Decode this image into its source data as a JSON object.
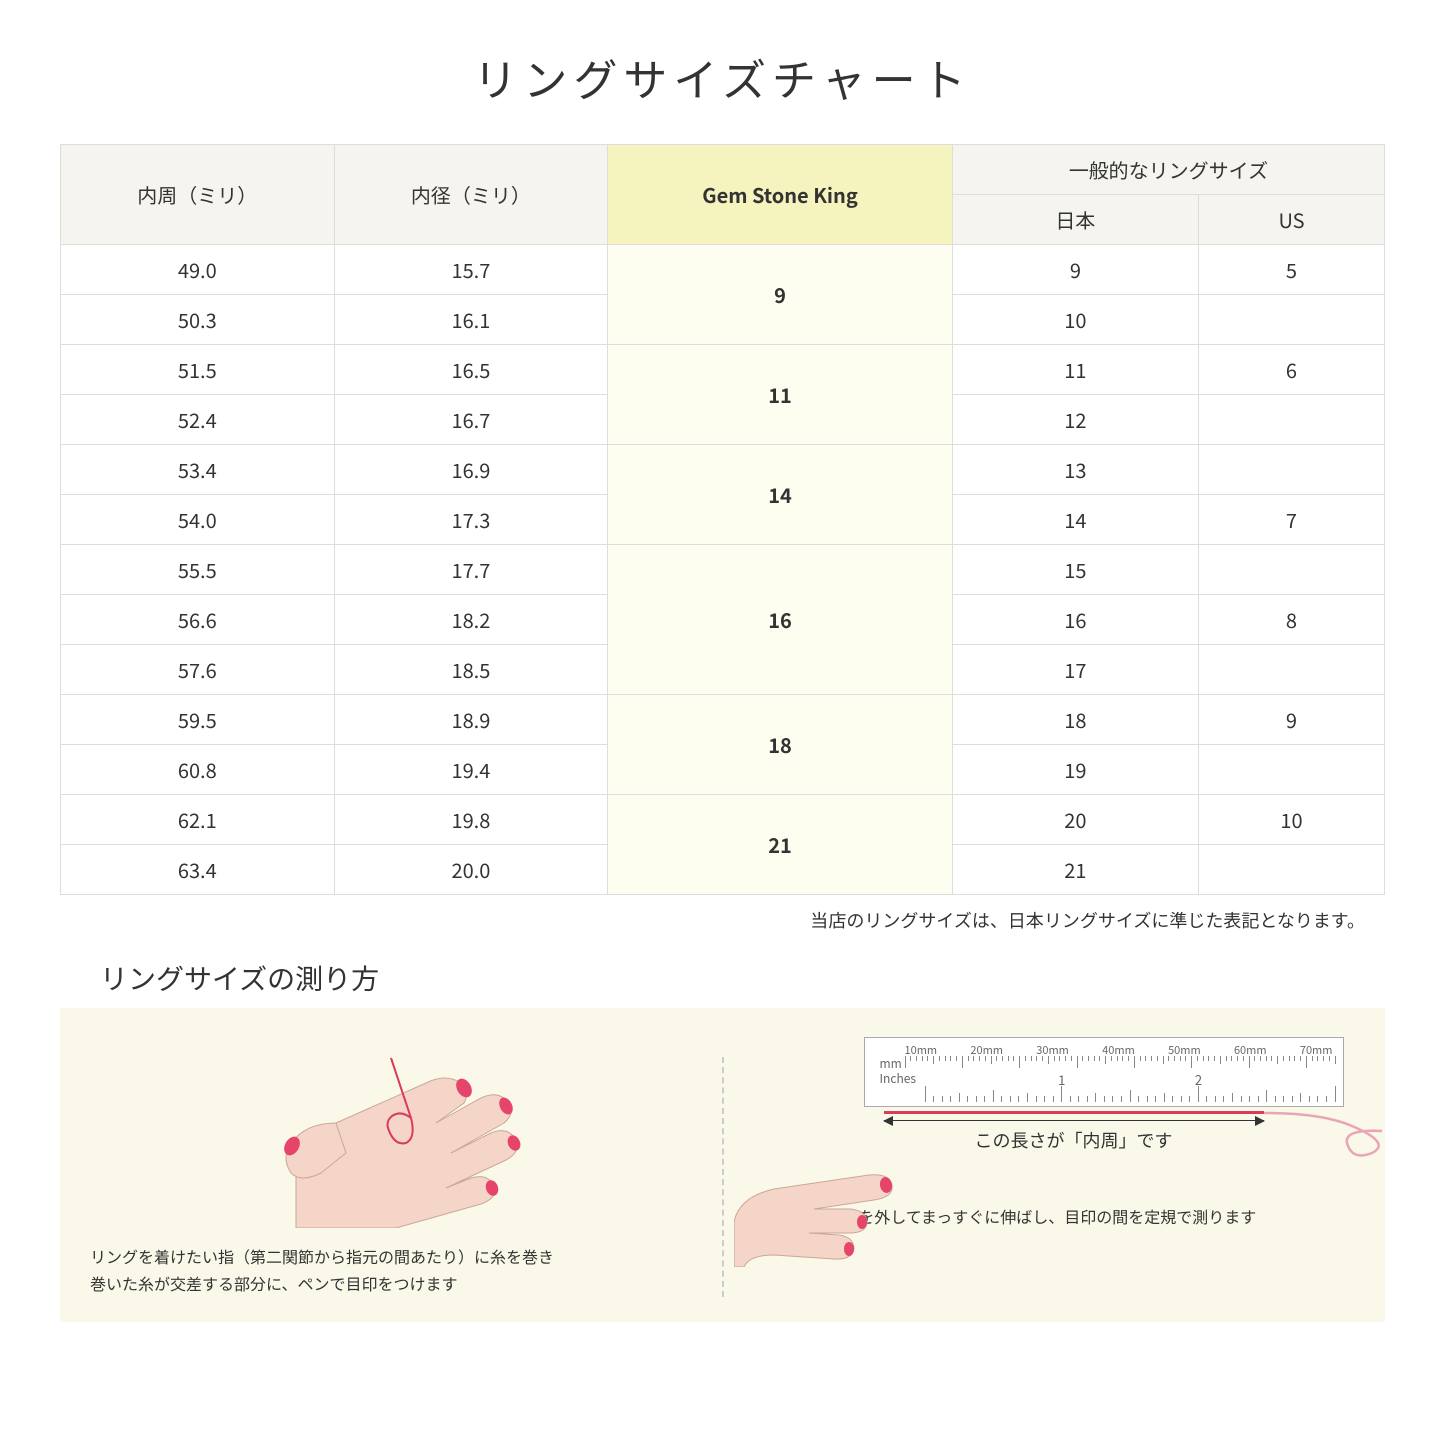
{
  "title": "リングサイズチャート",
  "table": {
    "headers": {
      "circumference": "内周（ミリ）",
      "diameter": "内径（ミリ）",
      "gsk": "Gem Stone King",
      "general": "一般的なリングサイズ",
      "jp": "日本",
      "us": "US"
    },
    "groups": [
      {
        "gsk": "9",
        "rows": [
          {
            "c": "49.0",
            "d": "15.7",
            "jp": "9",
            "us": "5"
          },
          {
            "c": "50.3",
            "d": "16.1",
            "jp": "10",
            "us": ""
          }
        ]
      },
      {
        "gsk": "11",
        "rows": [
          {
            "c": "51.5",
            "d": "16.5",
            "jp": "11",
            "us": "6"
          },
          {
            "c": "52.4",
            "d": "16.7",
            "jp": "12",
            "us": ""
          }
        ]
      },
      {
        "gsk": "14",
        "rows": [
          {
            "c": "53.4",
            "d": "16.9",
            "jp": "13",
            "us": ""
          },
          {
            "c": "54.0",
            "d": "17.3",
            "jp": "14",
            "us": "7"
          }
        ]
      },
      {
        "gsk": "16",
        "rows": [
          {
            "c": "55.5",
            "d": "17.7",
            "jp": "15",
            "us": ""
          },
          {
            "c": "56.6",
            "d": "18.2",
            "jp": "16",
            "us": "8"
          },
          {
            "c": "57.6",
            "d": "18.5",
            "jp": "17",
            "us": ""
          }
        ]
      },
      {
        "gsk": "18",
        "rows": [
          {
            "c": "59.5",
            "d": "18.9",
            "jp": "18",
            "us": "9"
          },
          {
            "c": "60.8",
            "d": "19.4",
            "jp": "19",
            "us": ""
          }
        ]
      },
      {
        "gsk": "21",
        "rows": [
          {
            "c": "62.1",
            "d": "19.8",
            "jp": "20",
            "us": "10"
          },
          {
            "c": "63.4",
            "d": "20.0",
            "jp": "21",
            "us": ""
          }
        ]
      }
    ],
    "header_bg": "#f5f4ef",
    "gsk_header_bg": "#f5f3be",
    "gsk_cell_bg": "#fdfdf0",
    "border_color": "#dddddd"
  },
  "note": "当店のリングサイズは、日本リングサイズに準じた表記となります。",
  "howto": {
    "title": "リングサイズの測り方",
    "background": "#faf8e8",
    "left_caption": "リングを着けたい指（第二関節から指元の間あたり）に糸を巻き\n巻いた糸が交差する部分に、ペンで目印をつけます",
    "right_caption": "糸を外してまっすぐに伸ばし、目印の間を定規で測ります",
    "arrow_label": "この長さが「内周」です",
    "ruler": {
      "mm_unit": "mm",
      "inch_unit": "Inches",
      "mm_labels": [
        "10mm",
        "20mm",
        "30mm",
        "40mm",
        "50mm",
        "60mm",
        "70mm"
      ],
      "inch_labels": [
        "1",
        "2"
      ]
    },
    "red_color": "#d93b5a",
    "skin_color": "#f5d5c8",
    "nail_color": "#e6456b"
  }
}
